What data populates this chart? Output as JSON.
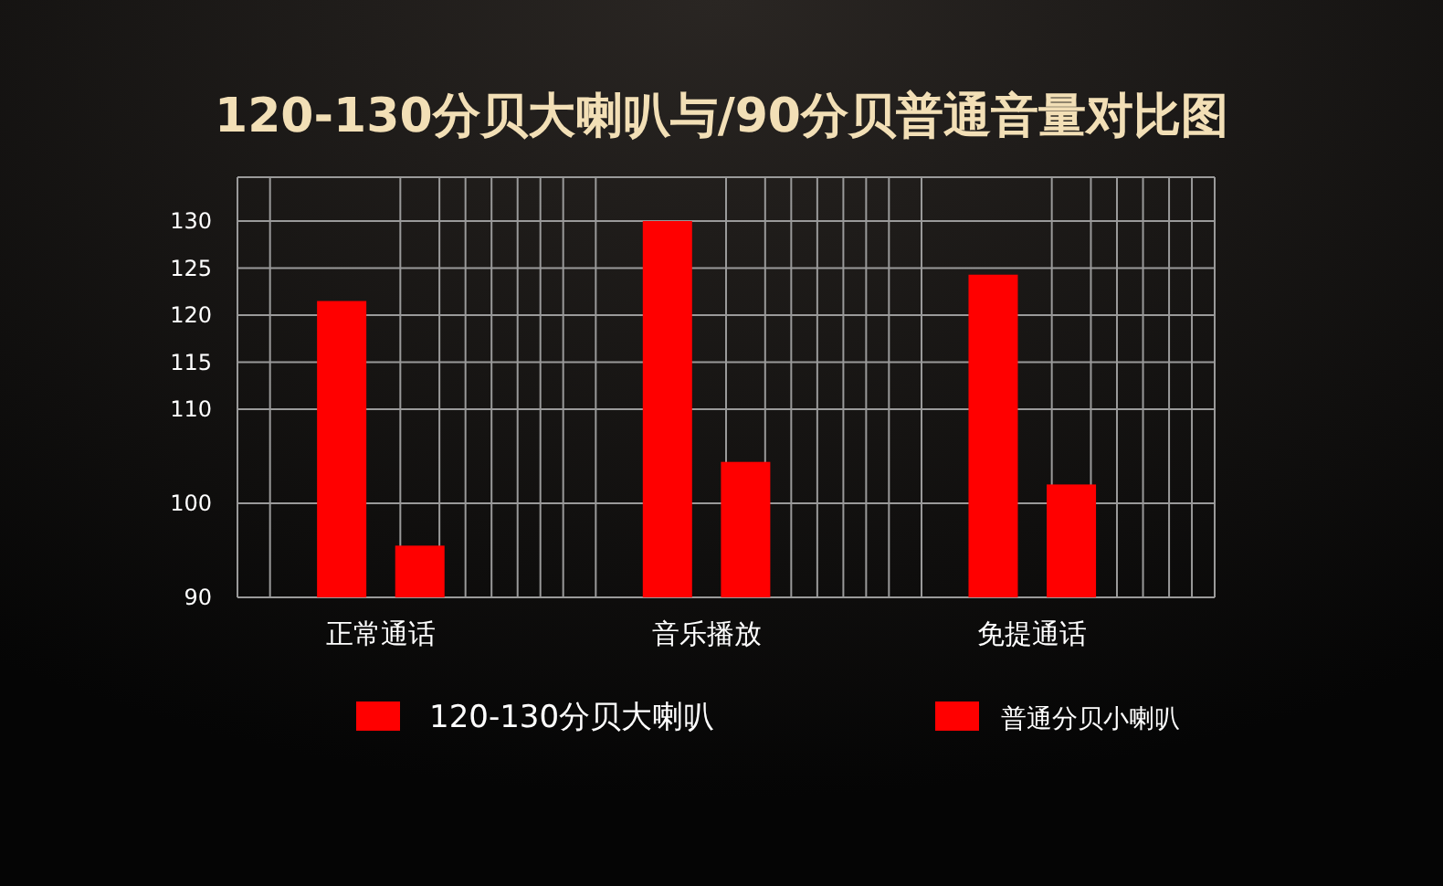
{
  "chart_data": {
    "type": "bar",
    "title": "120-130分贝大喇叭与/90分贝普通音量对比图",
    "categories": [
      "正常通话",
      "音乐播放",
      "免提通话"
    ],
    "series": [
      {
        "name": "120-130分贝大喇叭",
        "color": "#ff0000",
        "values": [
          121.5,
          130,
          124.3
        ]
      },
      {
        "name": "普通分贝小喇叭",
        "color": "#ff0000",
        "values": [
          95.5,
          104.4,
          102
        ]
      }
    ],
    "ylim": [
      90,
      130
    ],
    "yticks": [
      90,
      100,
      110,
      115,
      120,
      125,
      130
    ],
    "grid": true,
    "legend": "bottom"
  }
}
